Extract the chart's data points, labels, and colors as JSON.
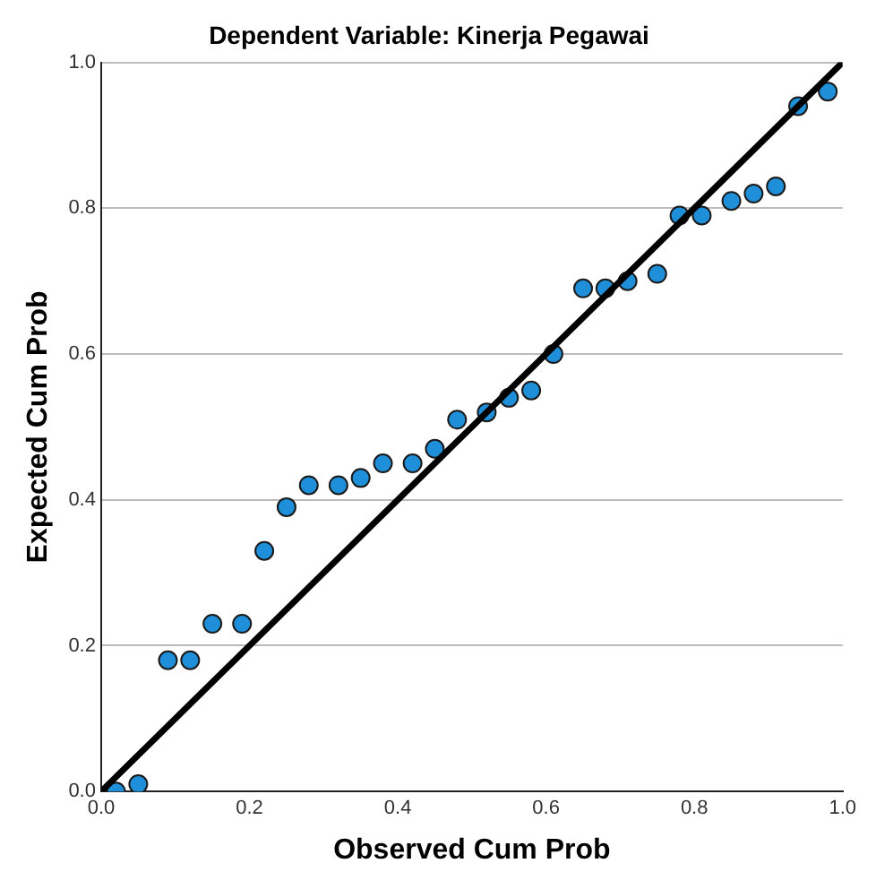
{
  "chart_data": {
    "type": "scatter",
    "title": "Dependent Variable: Kinerja Pegawai",
    "xlabel": "Observed Cum Prob",
    "ylabel": "Expected Cum Prob",
    "x": [
      0.02,
      0.05,
      0.09,
      0.12,
      0.15,
      0.19,
      0.22,
      0.25,
      0.28,
      0.32,
      0.35,
      0.38,
      0.42,
      0.45,
      0.48,
      0.52,
      0.55,
      0.58,
      0.61,
      0.65,
      0.68,
      0.71,
      0.75,
      0.78,
      0.81,
      0.85,
      0.88,
      0.91,
      0.94,
      0.98
    ],
    "series": [
      {
        "color": "#1e8fd8",
        "marker": "circle",
        "values": [
          0.0,
          0.01,
          0.18,
          0.18,
          0.23,
          0.23,
          0.33,
          0.39,
          0.42,
          0.42,
          0.43,
          0.45,
          0.45,
          0.47,
          0.51,
          0.52,
          0.54,
          0.55,
          0.6,
          0.69,
          0.69,
          0.7,
          0.71,
          0.79,
          0.79,
          0.81,
          0.82,
          0.83,
          0.94,
          0.96
        ]
      },
      {
        "type": "line",
        "marker": "none",
        "color": "#000000",
        "x": [
          0,
          1
        ],
        "values": [
          0,
          1
        ]
      }
    ],
    "xlim": [
      0,
      1
    ],
    "ylim": [
      0,
      1
    ],
    "xticks": [
      {
        "value": 0,
        "label": "0.0"
      },
      {
        "value": 0.2,
        "label": "0.2"
      },
      {
        "value": 0.4,
        "label": "0.4"
      },
      {
        "value": 0.6,
        "label": "0.6"
      },
      {
        "value": 0.8,
        "label": "0.8"
      },
      {
        "value": 1,
        "label": "1.0"
      }
    ],
    "yticks": [
      {
        "value": 0,
        "label": "0.0"
      },
      {
        "value": 0.2,
        "label": "0.2"
      },
      {
        "value": 0.4,
        "label": "0.4"
      },
      {
        "value": 0.6,
        "label": "0.6"
      },
      {
        "value": 0.8,
        "label": "0.8"
      },
      {
        "value": 1,
        "label": "1.0"
      }
    ],
    "grid": "y",
    "legend": false,
    "line_style": "solid"
  }
}
